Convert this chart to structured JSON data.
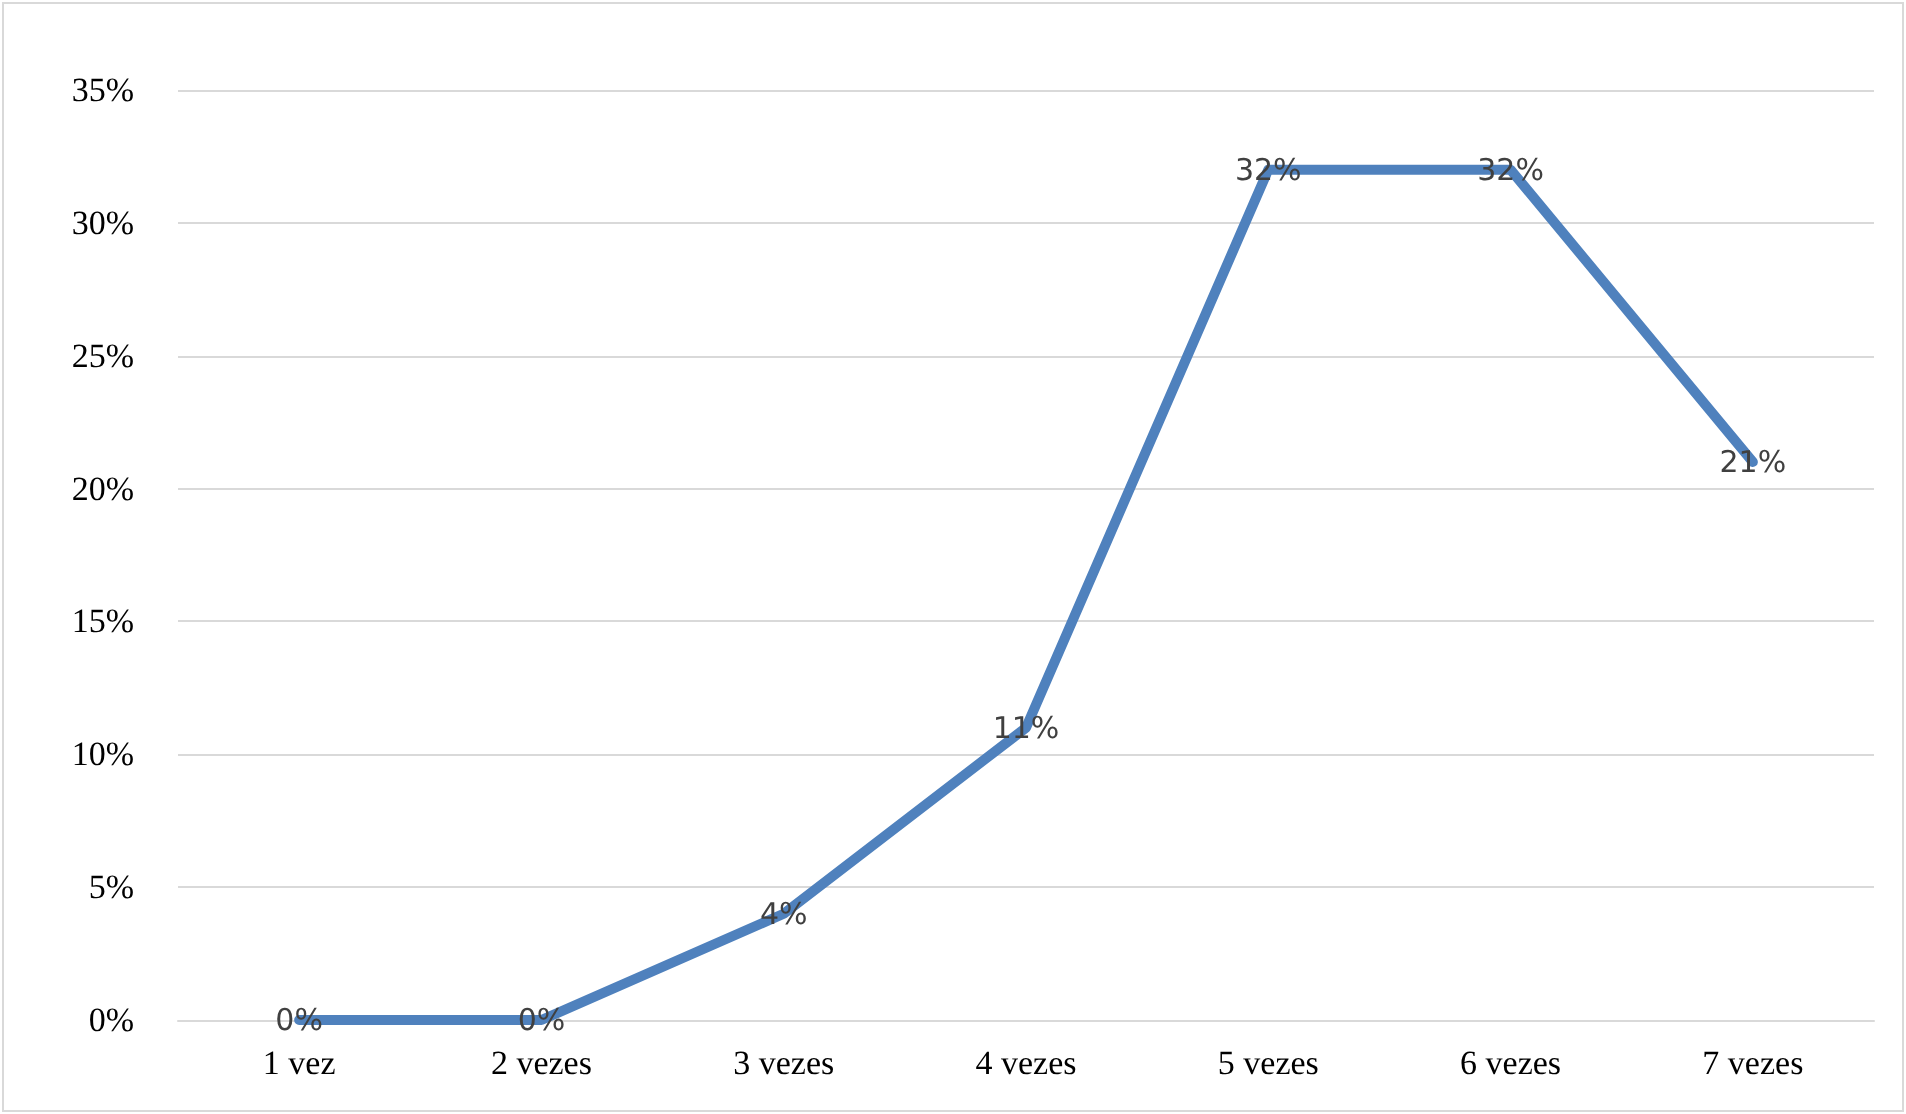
{
  "chart_data": {
    "type": "line",
    "categories": [
      "1 vez",
      "2 vezes",
      "3 vezes",
      "4 vezes",
      "5 vezes",
      "6 vezes",
      "7 vezes"
    ],
    "series": [
      {
        "color": "#4f81bd",
        "values": [
          0,
          0,
          4,
          11,
          32,
          32,
          21
        ],
        "value_labels": [
          "0%",
          "0%",
          "4%",
          "11%",
          "32%",
          "32%",
          "21%"
        ]
      }
    ],
    "ylim": [
      0,
      35
    ],
    "yticks": [
      {
        "value": 0,
        "label": "0%"
      },
      {
        "value": 5,
        "label": "5%"
      },
      {
        "value": 10,
        "label": "10%"
      },
      {
        "value": 15,
        "label": "15%"
      },
      {
        "value": 20,
        "label": "20%"
      },
      {
        "value": 25,
        "label": "25%"
      },
      {
        "value": 30,
        "label": "30%"
      },
      {
        "value": 35,
        "label": "35%"
      }
    ],
    "grid": "y",
    "marker": "none",
    "line_style": "solid"
  }
}
